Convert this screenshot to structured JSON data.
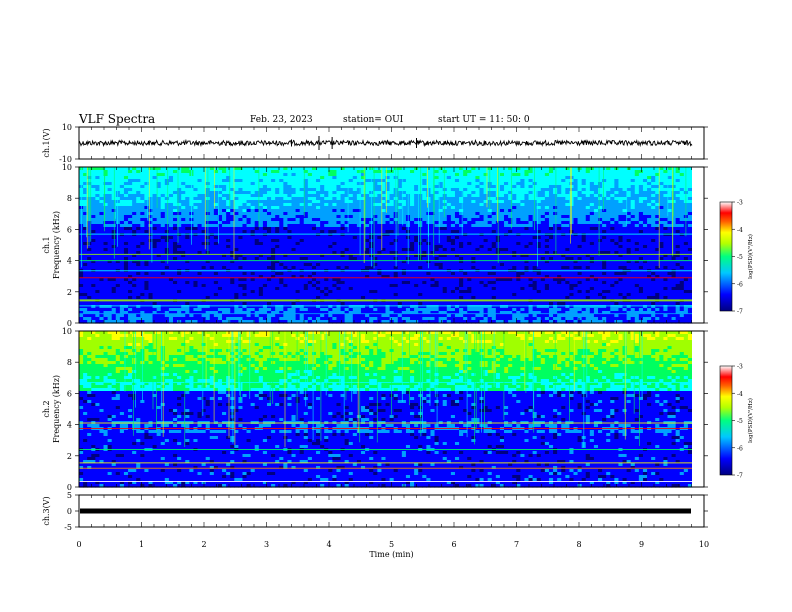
{
  "header": {
    "title": "VLF Spectra",
    "date": "Feb. 23, 2023",
    "station": "station= OUI",
    "start_ut": "start  UT =   11: 50: 0"
  },
  "chart_data": [
    {
      "type": "line",
      "panel": "ch1-waveform",
      "ylabel": "ch.1(V)",
      "ylim": [
        -10,
        10
      ],
      "yticks": [
        "10",
        "-10"
      ],
      "xlim": [
        0,
        10
      ],
      "series_color": "#000000"
    },
    {
      "type": "heatmap",
      "panel": "ch1-spectrogram",
      "ylabel": "ch.1\nFrequency (kHz)",
      "ylim": [
        0,
        10
      ],
      "yticks": [
        "0",
        "2",
        "4",
        "6",
        "8",
        "10"
      ],
      "xlim": [
        0,
        10
      ],
      "colorbar": {
        "label": "log(PSD)(V²/Hz)",
        "range": [
          -7,
          -3
        ],
        "ticks": [
          "-3",
          "-4",
          "-5",
          "-6",
          "-7"
        ]
      }
    },
    {
      "type": "heatmap",
      "panel": "ch2-spectrogram",
      "ylabel": "ch.2\nFrequency (kHz)",
      "ylim": [
        0,
        10
      ],
      "yticks": [
        "0",
        "2",
        "4",
        "6",
        "8",
        "10"
      ],
      "xlim": [
        0,
        10
      ],
      "colorbar": {
        "label": "log(PSD)(V²/Hz)",
        "range": [
          -7,
          -3
        ],
        "ticks": [
          "-3",
          "-4",
          "-5",
          "-6",
          "-7"
        ]
      }
    },
    {
      "type": "line",
      "panel": "ch3-waveform",
      "ylabel": "ch.3(V)",
      "ylim": [
        -5,
        5
      ],
      "yticks": [
        "5",
        "0",
        "-5"
      ],
      "xlim": [
        0,
        10
      ],
      "xlabel": "Time  (min)",
      "xticks": [
        "0",
        "1",
        "2",
        "3",
        "4",
        "5",
        "6",
        "7",
        "8",
        "9",
        "10"
      ],
      "series_color": "#000000"
    }
  ],
  "colors": {
    "colormap": [
      "#000080",
      "#0000ff",
      "#00a0ff",
      "#00ffff",
      "#00ff60",
      "#a0ff00",
      "#ffff00",
      "#ff8000",
      "#ff0000",
      "#ffc8c8",
      "#ffffff"
    ],
    "axis": "#000000"
  }
}
